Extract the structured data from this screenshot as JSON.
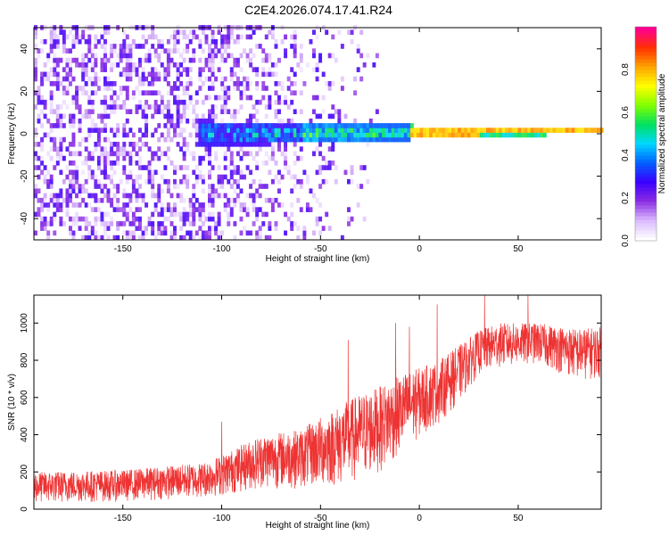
{
  "title": "C2E4.2026.074.17.41.R24",
  "chart_data": [
    {
      "type": "heatmap",
      "name": "spectrogram",
      "xlabel": "Height of straight line (km)",
      "ylabel": "Frequency (Hz)",
      "xlim": [
        -195,
        92
      ],
      "ylim": [
        -50,
        50
      ],
      "xticks": [
        -150,
        -100,
        -50,
        0,
        50
      ],
      "xtick_labels": [
        "-150",
        "-100",
        "-50",
        "0",
        "50"
      ],
      "yticks": [
        -40,
        -20,
        0,
        20,
        40
      ],
      "ytick_labels": [
        "-40",
        "-20",
        "0",
        "20",
        "40"
      ],
      "colorbar": {
        "label": "Normalized spectral amplitude",
        "range": [
          0,
          1
        ],
        "ticks": [
          0.0,
          0.2,
          0.4,
          0.6,
          0.8
        ],
        "tick_labels": [
          "0.0",
          "0.2",
          "0.4",
          "0.6",
          "0.8"
        ],
        "colors": [
          "#ffffff",
          "#d9b8ff",
          "#8a2be2",
          "#3a00ff",
          "#0060ff",
          "#00d8ff",
          "#00e060",
          "#80ff00",
          "#ffff00",
          "#ffa500",
          "#ff3000",
          "#ff0090"
        ]
      },
      "features": {
        "noise_region_x": [
          -195,
          -112
        ],
        "noise_fade_x": [
          -112,
          -20
        ],
        "band_start_x": -113,
        "strong_line_start_x": -5,
        "line_frequency": 0,
        "band_halfwidth_at_start": 5,
        "strong_amplitude": 0.85
      }
    },
    {
      "type": "line",
      "name": "snr",
      "xlabel": "Height of straight line (km)",
      "ylabel": "SNR (10 * v/v)",
      "xlim": [
        -195,
        92
      ],
      "ylim": [
        0,
        1150
      ],
      "xticks": [
        -150,
        -100,
        -50,
        0,
        50
      ],
      "xtick_labels": [
        "-150",
        "-100",
        "-50",
        "0",
        "50"
      ],
      "yticks": [
        0,
        200,
        400,
        600,
        800,
        1000
      ],
      "ytick_labels": [
        "0",
        "200",
        "400",
        "600",
        "800",
        "1000"
      ],
      "color": "#ee3333",
      "envelope": {
        "x": [
          -195,
          -150,
          -110,
          -100,
          -80,
          -60,
          -40,
          -30,
          -20,
          -10,
          0,
          10,
          20,
          30,
          40,
          60,
          80,
          92
        ],
        "low": [
          30,
          40,
          60,
          70,
          110,
          110,
          120,
          150,
          200,
          280,
          380,
          460,
          570,
          720,
          760,
          780,
          690,
          700
        ],
        "high": [
          200,
          210,
          250,
          290,
          400,
          430,
          560,
          620,
          660,
          720,
          760,
          800,
          880,
          960,
          1000,
          1000,
          970,
          980
        ],
        "spikes": [
          {
            "x": -100,
            "y": 470
          },
          {
            "x": -36,
            "y": 910
          },
          {
            "x": -12,
            "y": 1000
          },
          {
            "x": -5,
            "y": 980
          },
          {
            "x": 9,
            "y": 1100
          },
          {
            "x": 33,
            "y": 1150
          },
          {
            "x": 55,
            "y": 1150
          }
        ]
      }
    }
  ]
}
